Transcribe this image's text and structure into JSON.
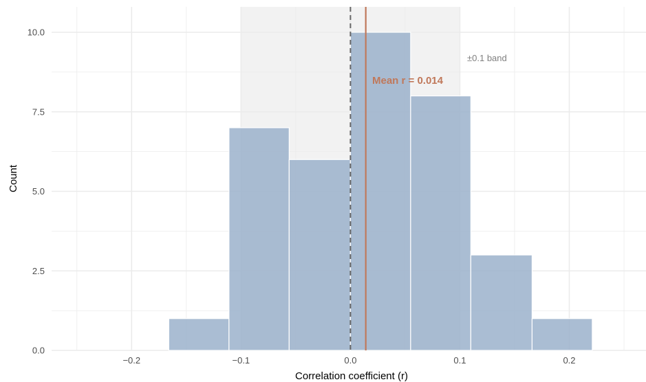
{
  "chart_data": {
    "type": "bar",
    "subtype": "histogram",
    "xlabel": "Correlation coefficient (r)",
    "ylabel": "Count",
    "xlim": [
      -0.27,
      0.27
    ],
    "ylim": [
      0,
      10.7
    ],
    "x_ticks": [
      {
        "value": -0.2,
        "label": "−0.2"
      },
      {
        "value": -0.1,
        "label": "−0.1"
      },
      {
        "value": 0.0,
        "label": "0.0"
      },
      {
        "value": 0.1,
        "label": "0.1"
      },
      {
        "value": 0.2,
        "label": "0.2"
      }
    ],
    "y_ticks": [
      {
        "value": 0,
        "label": "0.0"
      },
      {
        "value": 2.5,
        "label": "2.5"
      },
      {
        "value": 5,
        "label": "5.0"
      },
      {
        "value": 7.5,
        "label": "7.5"
      },
      {
        "value": 10,
        "label": "10.0"
      }
    ],
    "bins": [
      {
        "start": -0.166,
        "end": -0.111,
        "count": 1
      },
      {
        "start": -0.111,
        "end": -0.056,
        "count": 7
      },
      {
        "start": -0.056,
        "end": 0.0,
        "count": 6
      },
      {
        "start": 0.0,
        "end": 0.055,
        "count": 10
      },
      {
        "start": 0.055,
        "end": 0.11,
        "count": 8
      },
      {
        "start": 0.11,
        "end": 0.166,
        "count": 3
      },
      {
        "start": 0.166,
        "end": 0.221,
        "count": 1
      }
    ],
    "band": {
      "from": -0.1,
      "to": 0.1,
      "label": "±0.1 band"
    },
    "reference_line": {
      "value": 0.0,
      "style": "dashed"
    },
    "mean_line": {
      "value": 0.014,
      "label": "Mean r = 0.014"
    },
    "grid": true,
    "colors": {
      "bar": "#9bb1cb",
      "mean": "#c0785a",
      "reference": "#666666",
      "band": "#f2f2f2",
      "grid": "#ebebeb"
    }
  }
}
